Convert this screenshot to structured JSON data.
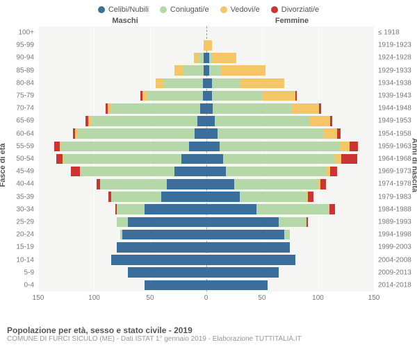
{
  "legend": [
    {
      "label": "Celibi/Nubili",
      "color": "#3b6e9b"
    },
    {
      "label": "Coniugati/e",
      "color": "#b6d7a8"
    },
    {
      "label": "Vedovi/e",
      "color": "#f5c667"
    },
    {
      "label": "Divorziati/e",
      "color": "#cc3333"
    }
  ],
  "headers": {
    "male": "Maschi",
    "female": "Femmine"
  },
  "axis_labels": {
    "left": "Fasce di età",
    "right": "Anni di nascita"
  },
  "x_axis": {
    "max": 150,
    "ticks": [
      150,
      100,
      50,
      0,
      50,
      100,
      150
    ]
  },
  "colors": {
    "celibi": "#3b6e9b",
    "coniugati": "#b6d7a8",
    "vedovi": "#f5c667",
    "divorziati": "#cc3333",
    "plot_bg": "#f5f5f3",
    "grid": "#ffffff"
  },
  "footer": {
    "title": "Popolazione per età, sesso e stato civile - 2019",
    "subtitle": "COMUNE DI FURCI SICULO (ME) - Dati ISTAT 1° gennaio 2019 - Elaborazione TUTTITALIA.IT"
  },
  "rows": [
    {
      "age": "100+",
      "birth": "≤ 1918",
      "m": {
        "c": 0,
        "k": 0,
        "v": 0,
        "d": 0
      },
      "f": {
        "c": 0,
        "k": 0,
        "v": 0,
        "d": 0
      }
    },
    {
      "age": "95-99",
      "birth": "1919-1923",
      "m": {
        "c": 0,
        "k": 0,
        "v": 2,
        "d": 0
      },
      "f": {
        "c": 0,
        "k": 0,
        "v": 5,
        "d": 0
      }
    },
    {
      "age": "90-94",
      "birth": "1924-1928",
      "m": {
        "c": 2,
        "k": 5,
        "v": 4,
        "d": 0
      },
      "f": {
        "c": 3,
        "k": 2,
        "v": 22,
        "d": 0
      }
    },
    {
      "age": "85-89",
      "birth": "1929-1933",
      "m": {
        "c": 2,
        "k": 18,
        "v": 8,
        "d": 0
      },
      "f": {
        "c": 3,
        "k": 10,
        "v": 40,
        "d": 0
      }
    },
    {
      "age": "80-84",
      "birth": "1934-1938",
      "m": {
        "c": 3,
        "k": 35,
        "v": 7,
        "d": 0
      },
      "f": {
        "c": 5,
        "k": 25,
        "v": 40,
        "d": 0
      }
    },
    {
      "age": "75-79",
      "birth": "1939-1943",
      "m": {
        "c": 3,
        "k": 50,
        "v": 4,
        "d": 2
      },
      "f": {
        "c": 5,
        "k": 45,
        "v": 30,
        "d": 1
      }
    },
    {
      "age": "70-74",
      "birth": "1944-1948",
      "m": {
        "c": 5,
        "k": 80,
        "v": 3,
        "d": 2
      },
      "f": {
        "c": 6,
        "k": 70,
        "v": 25,
        "d": 2
      }
    },
    {
      "age": "65-69",
      "birth": "1949-1953",
      "m": {
        "c": 8,
        "k": 95,
        "v": 2,
        "d": 3
      },
      "f": {
        "c": 8,
        "k": 85,
        "v": 18,
        "d": 2
      }
    },
    {
      "age": "60-64",
      "birth": "1954-1958",
      "m": {
        "c": 10,
        "k": 105,
        "v": 2,
        "d": 2
      },
      "f": {
        "c": 10,
        "k": 95,
        "v": 12,
        "d": 3
      }
    },
    {
      "age": "55-59",
      "birth": "1959-1963",
      "m": {
        "c": 15,
        "k": 115,
        "v": 1,
        "d": 5
      },
      "f": {
        "c": 12,
        "k": 108,
        "v": 8,
        "d": 8
      }
    },
    {
      "age": "50-54",
      "birth": "1964-1968",
      "m": {
        "c": 22,
        "k": 105,
        "v": 1,
        "d": 6
      },
      "f": {
        "c": 15,
        "k": 100,
        "v": 6,
        "d": 14
      }
    },
    {
      "age": "45-49",
      "birth": "1969-1973",
      "m": {
        "c": 28,
        "k": 85,
        "v": 0,
        "d": 8
      },
      "f": {
        "c": 18,
        "k": 90,
        "v": 3,
        "d": 6
      }
    },
    {
      "age": "40-44",
      "birth": "1974-1978",
      "m": {
        "c": 35,
        "k": 60,
        "v": 0,
        "d": 3
      },
      "f": {
        "c": 25,
        "k": 75,
        "v": 2,
        "d": 5
      }
    },
    {
      "age": "35-39",
      "birth": "1979-1983",
      "m": {
        "c": 40,
        "k": 45,
        "v": 0,
        "d": 2
      },
      "f": {
        "c": 30,
        "k": 60,
        "v": 1,
        "d": 5
      }
    },
    {
      "age": "30-34",
      "birth": "1984-1988",
      "m": {
        "c": 55,
        "k": 25,
        "v": 0,
        "d": 1
      },
      "f": {
        "c": 45,
        "k": 65,
        "v": 0,
        "d": 5
      }
    },
    {
      "age": "25-29",
      "birth": "1989-1993",
      "m": {
        "c": 70,
        "k": 10,
        "v": 0,
        "d": 0
      },
      "f": {
        "c": 65,
        "k": 25,
        "v": 0,
        "d": 1
      }
    },
    {
      "age": "20-24",
      "birth": "1994-1998",
      "m": {
        "c": 75,
        "k": 2,
        "v": 0,
        "d": 0
      },
      "f": {
        "c": 70,
        "k": 5,
        "v": 0,
        "d": 0
      }
    },
    {
      "age": "15-19",
      "birth": "1999-2003",
      "m": {
        "c": 80,
        "k": 0,
        "v": 0,
        "d": 0
      },
      "f": {
        "c": 75,
        "k": 0,
        "v": 0,
        "d": 0
      }
    },
    {
      "age": "10-14",
      "birth": "2004-2008",
      "m": {
        "c": 85,
        "k": 0,
        "v": 0,
        "d": 0
      },
      "f": {
        "c": 80,
        "k": 0,
        "v": 0,
        "d": 0
      }
    },
    {
      "age": "5-9",
      "birth": "2009-2013",
      "m": {
        "c": 70,
        "k": 0,
        "v": 0,
        "d": 0
      },
      "f": {
        "c": 65,
        "k": 0,
        "v": 0,
        "d": 0
      }
    },
    {
      "age": "0-4",
      "birth": "2014-2018",
      "m": {
        "c": 55,
        "k": 0,
        "v": 0,
        "d": 0
      },
      "f": {
        "c": 55,
        "k": 0,
        "v": 0,
        "d": 0
      }
    }
  ]
}
